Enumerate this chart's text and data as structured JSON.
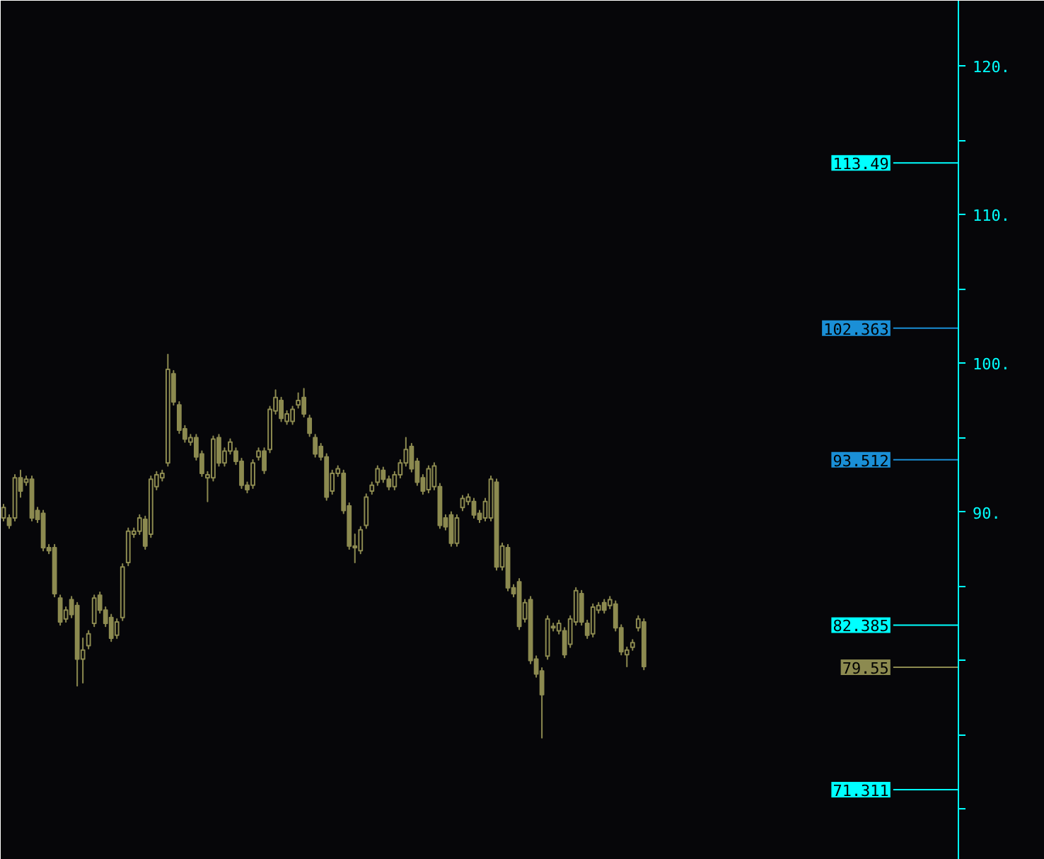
{
  "chart_data": {
    "type": "candlestick",
    "ylim": [
      66.6,
      124.4
    ],
    "tick_labels": "y",
    "yticks": [
      {
        "value": 70,
        "label": null
      },
      {
        "value": 75,
        "label": null
      },
      {
        "value": 80,
        "label": null
      },
      {
        "value": 85,
        "label": null
      },
      {
        "value": 90,
        "label": "90."
      },
      {
        "value": 95,
        "label": null
      },
      {
        "value": 100,
        "label": "100."
      },
      {
        "value": 105,
        "label": null
      },
      {
        "value": 110,
        "label": "110."
      },
      {
        "value": 115,
        "label": null
      },
      {
        "value": 120,
        "label": "120."
      }
    ],
    "categories": [
      null,
      null,
      null,
      null,
      null,
      null,
      null,
      null,
      null,
      null,
      null,
      null,
      null,
      null,
      null,
      null,
      null,
      null,
      null,
      null,
      null,
      null,
      null,
      null,
      null,
      null,
      null,
      null,
      null,
      null,
      null,
      null,
      null,
      null,
      null,
      null,
      null,
      null,
      null,
      null,
      null,
      null,
      null,
      null,
      null,
      null,
      null,
      null,
      null,
      null,
      null,
      null,
      null,
      null,
      null,
      null,
      null,
      null,
      null,
      null,
      null,
      null,
      null,
      null,
      null,
      null,
      null,
      null,
      null,
      null,
      null,
      null,
      null,
      null,
      null,
      null,
      null,
      null,
      null,
      null,
      null,
      null,
      null,
      null,
      null,
      null,
      null,
      null,
      null,
      null,
      null,
      null,
      null,
      null,
      null,
      null,
      null,
      null,
      null,
      null,
      null,
      null,
      null,
      null,
      null,
      null,
      null,
      null,
      null,
      null,
      null,
      null,
      null,
      null,
      null,
      null,
      null,
      null,
      null,
      null,
      null,
      null,
      null,
      null,
      null,
      null,
      null,
      null,
      null,
      null,
      null,
      null,
      null,
      null,
      null,
      null,
      null,
      null,
      null,
      null,
      null,
      null,
      null,
      null,
      null,
      null,
      null,
      null,
      null,
      null,
      null,
      null,
      null,
      null,
      null,
      null,
      null,
      null,
      null,
      null,
      null,
      null,
      null,
      null,
      null,
      null,
      null,
      null,
      null
    ],
    "ohlc": [
      [
        89.6,
        90.5,
        89.4,
        90.3
      ],
      [
        89.6,
        89.8,
        88.9,
        89.1
      ],
      [
        89.6,
        92.5,
        89.4,
        92.3
      ],
      [
        92.3,
        92.8,
        91.0,
        91.4
      ],
      [
        92.0,
        92.4,
        91.8,
        92.2
      ],
      [
        92.2,
        92.4,
        89.4,
        89.6
      ],
      [
        90.1,
        90.3,
        89.3,
        89.5
      ],
      [
        89.9,
        90.1,
        87.4,
        87.6
      ],
      [
        87.6,
        87.8,
        87.2,
        87.4
      ],
      [
        87.6,
        87.8,
        84.3,
        84.5
      ],
      [
        84.2,
        84.4,
        82.4,
        82.6
      ],
      [
        82.8,
        83.6,
        82.6,
        83.4
      ],
      [
        84.1,
        84.3,
        82.9,
        83.1
      ],
      [
        83.7,
        83.9,
        78.3,
        80.1
      ],
      [
        80.1,
        81.5,
        78.5,
        80.7
      ],
      [
        81.0,
        82.0,
        80.8,
        81.8
      ],
      [
        82.5,
        84.4,
        82.3,
        84.2
      ],
      [
        84.4,
        84.6,
        83.2,
        83.4
      ],
      [
        83.4,
        83.6,
        82.3,
        82.5
      ],
      [
        82.9,
        83.1,
        81.3,
        81.5
      ],
      [
        81.7,
        82.8,
        81.5,
        82.6
      ],
      [
        82.9,
        86.5,
        82.7,
        86.3
      ],
      [
        86.6,
        88.9,
        86.4,
        88.7
      ],
      [
        88.5,
        88.9,
        88.3,
        88.7
      ],
      [
        88.7,
        89.8,
        88.5,
        89.6
      ],
      [
        89.5,
        89.7,
        87.5,
        87.7
      ],
      [
        88.5,
        92.4,
        88.3,
        92.2
      ],
      [
        91.7,
        92.7,
        91.5,
        92.5
      ],
      [
        92.3,
        92.8,
        92.1,
        92.6
      ],
      [
        93.3,
        100.6,
        93.1,
        99.6
      ],
      [
        99.3,
        99.5,
        97.2,
        97.4
      ],
      [
        97.2,
        97.4,
        95.3,
        95.5
      ],
      [
        95.6,
        95.8,
        94.7,
        94.9
      ],
      [
        94.7,
        95.2,
        94.5,
        95.0
      ],
      [
        95.0,
        95.2,
        93.5,
        93.7
      ],
      [
        93.9,
        94.1,
        92.4,
        92.6
      ],
      [
        92.3,
        92.7,
        90.7,
        92.5
      ],
      [
        92.3,
        95.1,
        92.1,
        94.9
      ],
      [
        95.0,
        95.2,
        93.1,
        93.3
      ],
      [
        93.3,
        94.3,
        93.1,
        94.1
      ],
      [
        94.1,
        94.9,
        93.9,
        94.7
      ],
      [
        94.1,
        94.3,
        93.2,
        93.4
      ],
      [
        93.4,
        93.6,
        91.6,
        91.8
      ],
      [
        91.8,
        92.0,
        91.3,
        91.5
      ],
      [
        91.8,
        93.5,
        91.6,
        93.3
      ],
      [
        93.7,
        94.3,
        93.5,
        94.1
      ],
      [
        94.1,
        94.3,
        92.6,
        92.8
      ],
      [
        94.2,
        97.1,
        94.0,
        96.9
      ],
      [
        96.8,
        98.2,
        96.6,
        97.7
      ],
      [
        97.5,
        97.7,
        96.1,
        96.3
      ],
      [
        96.1,
        96.8,
        95.9,
        96.6
      ],
      [
        96.1,
        97.1,
        95.9,
        96.9
      ],
      [
        97.2,
        98.0,
        97.0,
        97.5
      ],
      [
        97.7,
        98.3,
        96.4,
        96.6
      ],
      [
        96.3,
        96.5,
        95.1,
        95.3
      ],
      [
        95.0,
        95.2,
        93.7,
        93.9
      ],
      [
        94.4,
        94.6,
        93.5,
        93.7
      ],
      [
        93.7,
        93.9,
        90.8,
        91.0
      ],
      [
        91.4,
        92.8,
        91.2,
        92.6
      ],
      [
        92.6,
        93.1,
        92.4,
        92.9
      ],
      [
        92.6,
        92.8,
        89.9,
        90.1
      ],
      [
        90.4,
        90.6,
        87.5,
        87.7
      ],
      [
        87.7,
        88.5,
        86.6,
        87.6
      ],
      [
        87.4,
        89.0,
        87.2,
        88.8
      ],
      [
        89.1,
        91.2,
        88.9,
        91.0
      ],
      [
        91.4,
        92.0,
        91.2,
        91.8
      ],
      [
        92.0,
        93.1,
        91.8,
        92.9
      ],
      [
        92.8,
        93.0,
        92.0,
        92.2
      ],
      [
        92.2,
        92.4,
        91.5,
        91.7
      ],
      [
        91.7,
        92.7,
        91.5,
        92.5
      ],
      [
        92.5,
        93.5,
        92.3,
        93.3
      ],
      [
        93.3,
        95.0,
        93.1,
        94.2
      ],
      [
        94.4,
        94.6,
        92.7,
        92.9
      ],
      [
        93.4,
        93.6,
        91.8,
        92.0
      ],
      [
        92.3,
        92.5,
        91.2,
        91.4
      ],
      [
        91.5,
        93.1,
        91.3,
        92.9
      ],
      [
        91.7,
        93.3,
        91.5,
        93.1
      ],
      [
        91.7,
        91.9,
        88.9,
        89.1
      ],
      [
        89.6,
        89.8,
        88.8,
        89.0
      ],
      [
        89.8,
        90.0,
        87.7,
        87.9
      ],
      [
        87.9,
        89.8,
        87.7,
        89.6
      ],
      [
        90.3,
        91.1,
        90.1,
        90.9
      ],
      [
        90.7,
        91.2,
        90.5,
        91.0
      ],
      [
        90.7,
        90.9,
        89.6,
        89.8
      ],
      [
        89.9,
        90.1,
        89.3,
        89.5
      ],
      [
        89.6,
        90.9,
        89.4,
        90.7
      ],
      [
        89.6,
        92.4,
        89.4,
        92.2
      ],
      [
        92.0,
        92.2,
        86.1,
        86.3
      ],
      [
        86.3,
        87.9,
        86.1,
        87.7
      ],
      [
        87.6,
        87.8,
        84.7,
        84.9
      ],
      [
        84.9,
        85.1,
        84.3,
        84.5
      ],
      [
        85.3,
        85.5,
        82.1,
        82.3
      ],
      [
        82.8,
        84.1,
        82.6,
        83.9
      ],
      [
        84.1,
        84.3,
        79.8,
        80.0
      ],
      [
        80.1,
        80.3,
        78.9,
        79.1
      ],
      [
        79.3,
        79.5,
        74.8,
        77.7
      ],
      [
        80.3,
        83.0,
        80.1,
        82.8
      ],
      [
        82.2,
        82.5,
        82.0,
        82.3
      ],
      [
        82.0,
        82.7,
        81.8,
        82.5
      ],
      [
        82.0,
        82.2,
        80.2,
        80.4
      ],
      [
        81.1,
        83.0,
        80.9,
        82.8
      ],
      [
        82.6,
        84.9,
        82.4,
        84.7
      ],
      [
        84.5,
        84.7,
        82.4,
        82.6
      ],
      [
        82.5,
        82.7,
        81.5,
        81.7
      ],
      [
        81.8,
        83.8,
        81.6,
        83.6
      ],
      [
        83.4,
        83.9,
        83.2,
        83.7
      ],
      [
        83.9,
        84.1,
        83.2,
        83.4
      ],
      [
        83.7,
        84.3,
        83.5,
        84.1
      ],
      [
        83.8,
        84.0,
        82.0,
        82.2
      ],
      [
        82.2,
        82.4,
        80.4,
        80.6
      ],
      [
        80.4,
        80.9,
        79.6,
        80.7
      ],
      [
        80.9,
        81.4,
        80.7,
        81.2
      ],
      [
        82.2,
        83.0,
        82.0,
        82.8
      ],
      [
        82.6,
        82.8,
        79.4,
        79.6
      ],
      null,
      null,
      null,
      null,
      null,
      null,
      null,
      null,
      null,
      null,
      null,
      null,
      null,
      null,
      null,
      null,
      null,
      null,
      null,
      null,
      null,
      null,
      null,
      null,
      null,
      null,
      null,
      null,
      null,
      null,
      null,
      null,
      null,
      null,
      null,
      null,
      null,
      null,
      null,
      null,
      null,
      null,
      null,
      null,
      null,
      null,
      null,
      null,
      null,
      null,
      null,
      null,
      null,
      null,
      null
    ],
    "color": "#8c8a50",
    "ref_lines": [
      {
        "axis": "y",
        "value": 113.49,
        "label": "113.49",
        "color": "#00ffff"
      },
      {
        "axis": "y",
        "value": 102.363,
        "label": "102.363",
        "color": "#1a8fd6"
      },
      {
        "axis": "y",
        "value": 93.512,
        "label": "93.512",
        "color": "#1a8fd6"
      },
      {
        "axis": "y",
        "value": 82.385,
        "label": "82.385",
        "color": "#00ffff"
      },
      {
        "axis": "y",
        "value": 79.55,
        "label": "79.55",
        "color": "#8c8a50"
      },
      {
        "axis": "y",
        "value": 71.311,
        "label": "71.311",
        "color": "#00ffff"
      }
    ]
  }
}
